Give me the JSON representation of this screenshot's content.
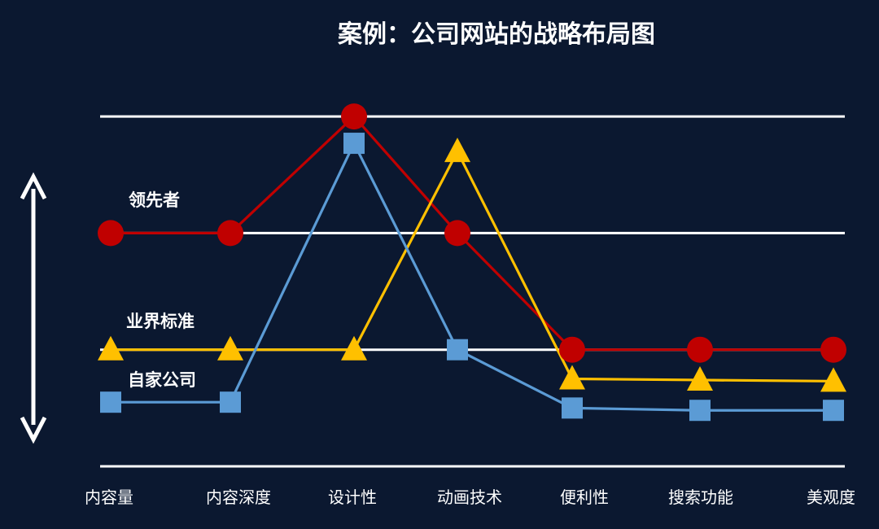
{
  "chart_data": {
    "type": "line",
    "title": "案例：公司网站的战略布局图",
    "categories": [
      "内容量",
      "内容深度",
      "设计性",
      "动画技术",
      "便利性",
      "搜索功能",
      "美观度"
    ],
    "levels": [
      0,
      1,
      2,
      3
    ],
    "ylim": [
      0,
      3
    ],
    "grid": true,
    "legend": "inline labels on left",
    "series": [
      {
        "name": "领先者",
        "marker": "circle",
        "color": "#c00000",
        "values": [
          2,
          2,
          3,
          2,
          1,
          1,
          1
        ]
      },
      {
        "name": "业界标准",
        "marker": "triangle",
        "color": "#ffc000",
        "values": [
          1,
          1,
          1,
          2.7,
          0.75,
          0.74,
          0.73
        ]
      },
      {
        "name": "自家公司",
        "marker": "square",
        "color": "#5b9bd5",
        "values": [
          0.55,
          0.55,
          2.77,
          1,
          0.5,
          0.48,
          0.48
        ]
      }
    ],
    "annotations": [
      "vertical double-headed arrow on left axis"
    ]
  }
}
